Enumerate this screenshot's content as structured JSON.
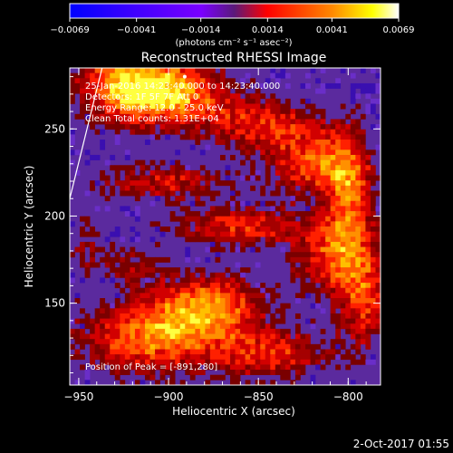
{
  "chart_data": {
    "type": "heatmap",
    "title": "Reconstructed RHESSI Image",
    "xlabel": "Heliocentric X (arcsec)",
    "ylabel": "Heliocentric Y (arcsec)",
    "xlim": [
      -955,
      -782
    ],
    "ylim": [
      103,
      285
    ],
    "x_ticks": [
      -950,
      -900,
      -850,
      -800
    ],
    "x_tick_labels": [
      "−950",
      "−900",
      "−850",
      "−800"
    ],
    "y_ticks": [
      150,
      200,
      250
    ],
    "y_tick_labels": [
      "150",
      "200",
      "250"
    ],
    "colorbar": {
      "range": [
        -0.0069,
        0.0069
      ],
      "ticks": [
        -0.0069,
        -0.0041,
        -0.0014,
        0.0014,
        0.0041,
        0.0069
      ],
      "tick_labels": [
        "−0.0069",
        "−0.0041",
        "−0.0014",
        "0.0014",
        "0.0041",
        "0.0069"
      ],
      "units_label": "(photons cm⁻² s⁻¹ asec⁻²)",
      "colors": [
        "#0000ff",
        "#7a00ff",
        "#ff0000",
        "#ff8a00",
        "#ffff00",
        "#ffffff"
      ]
    },
    "annotations": [
      "25-Jan-2016 14:23:40.000 to 14:23:40.000",
      "Detectors: 1F 5F 7F  Att 0",
      "Energy Range: 12.0 - 25.0 keV",
      "Clean     Total counts: 1.31E+04"
    ],
    "peak_label": "Position of Peak = [-891,280]",
    "peak": {
      "x": -891,
      "y": 280
    },
    "limb_line": {
      "from": [
        -955,
        210
      ],
      "to": [
        -937,
        285
      ]
    },
    "background_color": "#5b2a9e",
    "grid": false
  },
  "footer": {
    "date_stamp": "2-Oct-2017 01:55"
  }
}
